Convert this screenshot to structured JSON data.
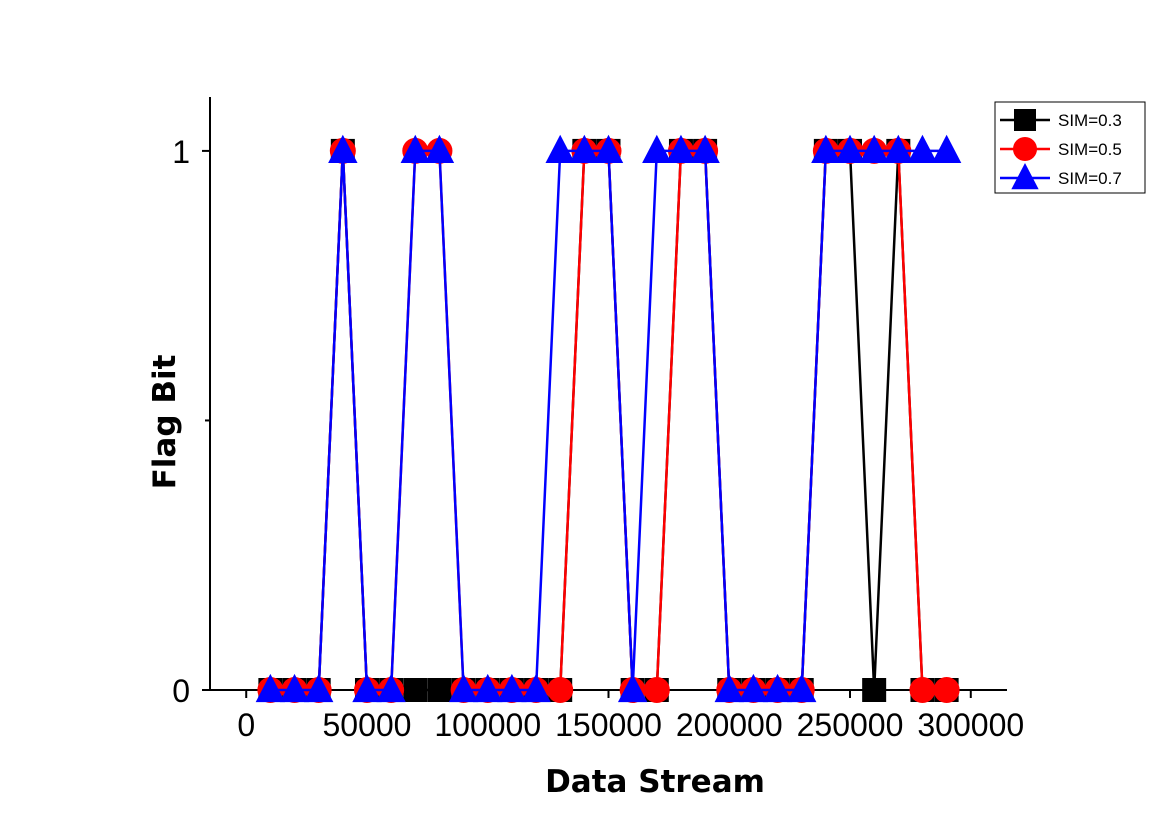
{
  "chart_data": {
    "type": "line",
    "title": "",
    "xlabel": "Data Stream",
    "ylabel": "Flag Bit",
    "xlim": [
      -15000,
      315000
    ],
    "ylim": [
      0,
      1.1
    ],
    "xticks": [
      0,
      50000,
      100000,
      150000,
      200000,
      250000,
      300000
    ],
    "xtick_labels": [
      "0",
      "50000",
      "100000",
      "150000",
      "200000",
      "250000",
      "300000"
    ],
    "yticks": [
      0,
      1
    ],
    "ytick_labels": [
      "0",
      "1"
    ],
    "grid": false,
    "legend_position": "top-right",
    "x": [
      10000,
      20000,
      30000,
      40000,
      50000,
      60000,
      70000,
      80000,
      90000,
      100000,
      110000,
      120000,
      130000,
      140000,
      150000,
      160000,
      170000,
      180000,
      190000,
      200000,
      210000,
      220000,
      230000,
      240000,
      250000,
      260000,
      270000,
      280000,
      290000
    ],
    "series": [
      {
        "name": "SIM=0.3",
        "color": "#000000",
        "marker": "square",
        "values": [
          0,
          0,
          0,
          1,
          0,
          0,
          0,
          0,
          0,
          0,
          0,
          0,
          0,
          1,
          1,
          0,
          0,
          1,
          1,
          0,
          0,
          0,
          0,
          1,
          1,
          0,
          1,
          0,
          0
        ]
      },
      {
        "name": "SIM=0.5",
        "color": "#ff0000",
        "marker": "circle",
        "values": [
          0,
          0,
          0,
          1,
          0,
          0,
          1,
          1,
          0,
          0,
          0,
          0,
          0,
          1,
          1,
          0,
          0,
          1,
          1,
          0,
          0,
          0,
          0,
          1,
          1,
          1,
          1,
          0,
          0
        ]
      },
      {
        "name": "SIM=0.7",
        "color": "#0000ff",
        "marker": "triangle",
        "values": [
          0,
          0,
          0,
          1,
          0,
          0,
          1,
          1,
          0,
          0,
          0,
          0,
          1,
          1,
          1,
          0,
          1,
          1,
          1,
          0,
          0,
          0,
          0,
          1,
          1,
          1,
          1,
          1,
          1
        ]
      }
    ]
  }
}
